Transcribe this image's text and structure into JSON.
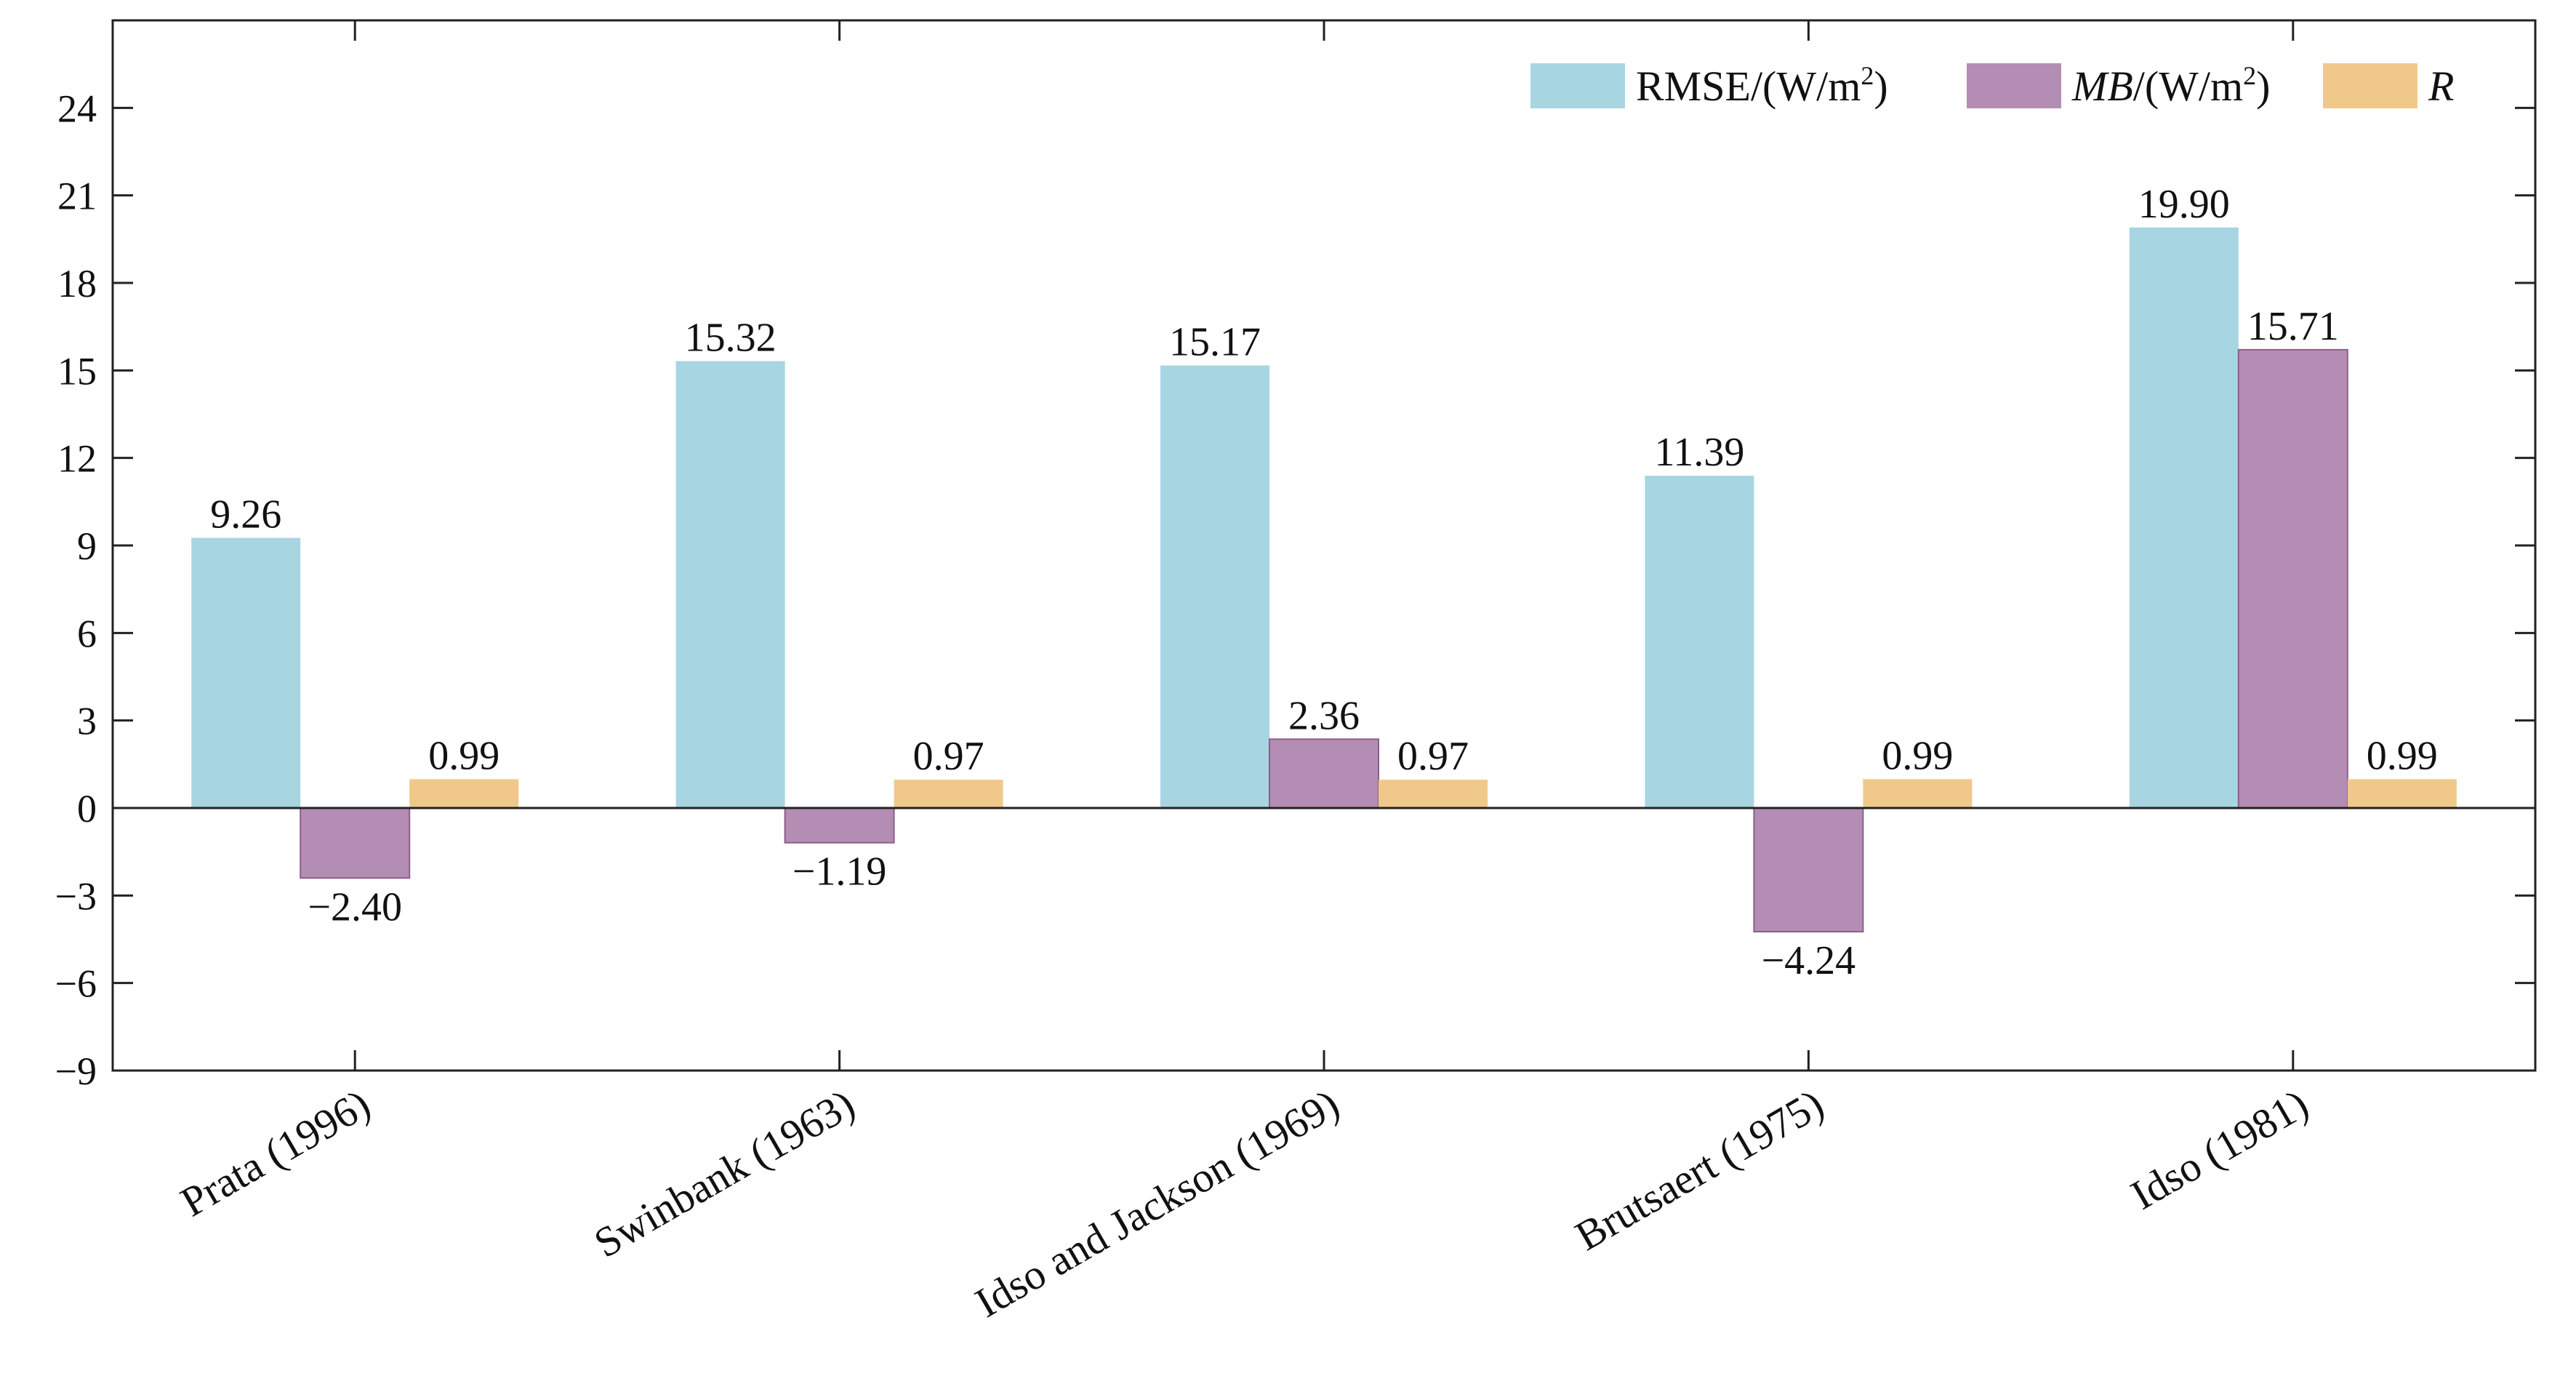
{
  "chart_data": {
    "type": "bar",
    "categories": [
      "Prata (1996)",
      "Swinbank (1963)",
      "Idso and Jackson (1969)",
      "Brutsaert (1975)",
      "Idso (1981)"
    ],
    "series": [
      {
        "name": "RMSE/(W/m²)",
        "legend_parts": [
          {
            "text": "RMSE/(W/m",
            "italic": false
          },
          {
            "text": "2",
            "sup": true
          },
          {
            "text": ")",
            "italic": false
          }
        ],
        "color": "#A8D5E2",
        "values": [
          9.26,
          15.32,
          15.17,
          11.39,
          19.9
        ],
        "labels": [
          "9.26",
          "15.32",
          "15.17",
          "11.39",
          "19.90"
        ]
      },
      {
        "name": "MB/(W/m²)",
        "legend_parts": [
          {
            "text": "MB",
            "italic": true
          },
          {
            "text": "/(W/m",
            "italic": false
          },
          {
            "text": "2",
            "sup": true
          },
          {
            "text": ")",
            "italic": false
          }
        ],
        "color": "#B48DB4",
        "values": [
          -2.4,
          -1.19,
          2.36,
          -4.24,
          15.71
        ],
        "labels": [
          "−2.40",
          "−1.19",
          "2.36",
          "−4.24",
          "15.71"
        ]
      },
      {
        "name": "R",
        "legend_parts": [
          {
            "text": "R",
            "italic": true
          }
        ],
        "color": "#F0C98A",
        "values": [
          0.99,
          0.97,
          0.97,
          0.99,
          0.99
        ],
        "labels": [
          "0.99",
          "0.97",
          "0.97",
          "0.99",
          "0.99"
        ]
      }
    ],
    "ylim": [
      -9,
      27
    ],
    "yticks": [
      -9,
      -6,
      -3,
      0,
      3,
      6,
      9,
      12,
      15,
      18,
      21,
      24
    ],
    "ytick_labels": [
      "−9",
      "−6",
      "−3",
      "0",
      "3",
      "6",
      "9",
      "12",
      "15",
      "18",
      "21",
      "24"
    ],
    "title": "",
    "xlabel": "",
    "ylabel": "",
    "grid": false,
    "legend_position": "top-right"
  }
}
